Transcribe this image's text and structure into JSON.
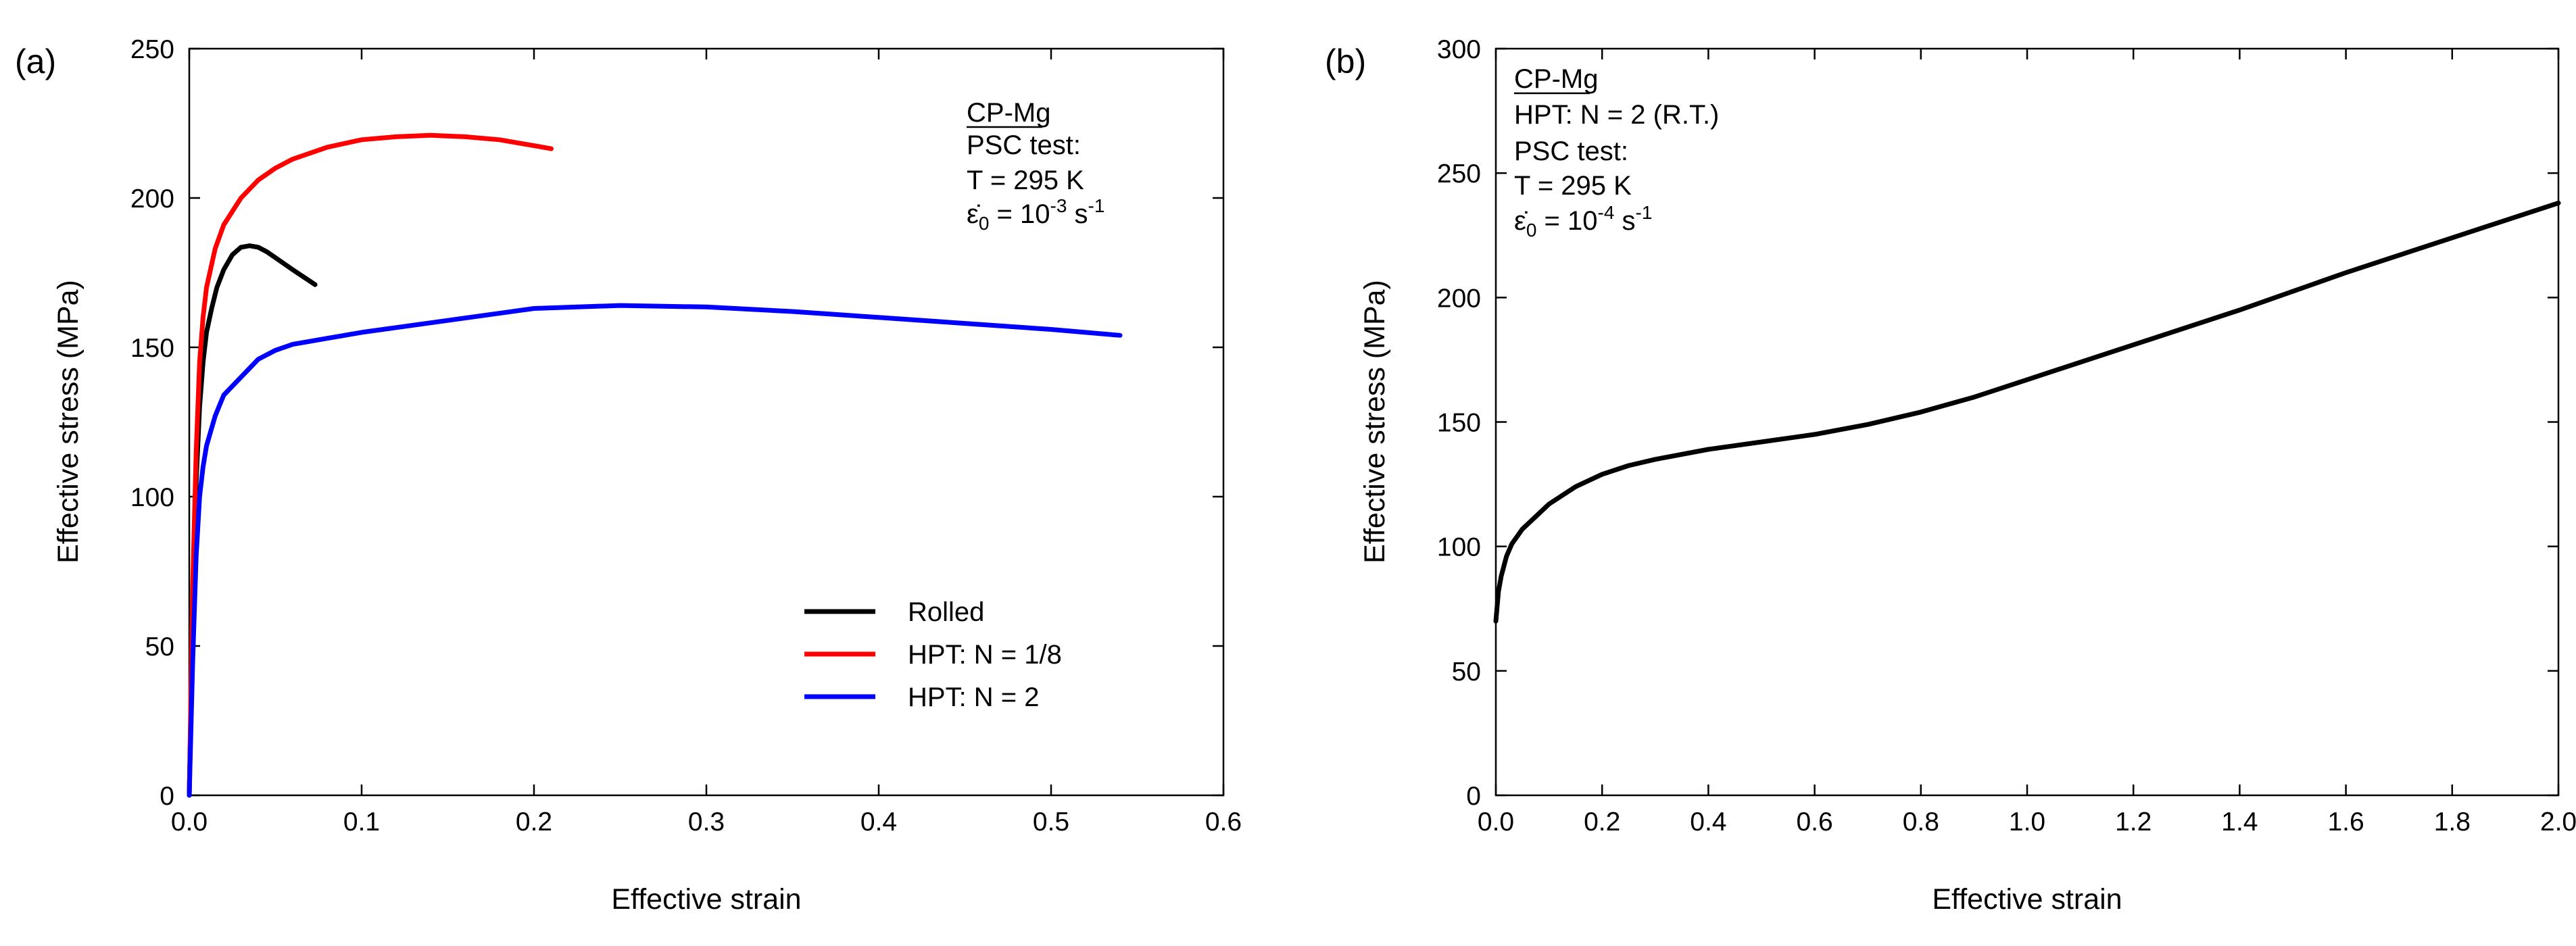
{
  "chart_data": [
    {
      "panel": "(a)",
      "type": "line",
      "xlabel": "Effective strain",
      "ylabel": "Effective stress (MPa)",
      "xlim": [
        0,
        0.6
      ],
      "ylim": [
        0,
        250
      ],
      "xticks": [
        0.0,
        0.1,
        0.2,
        0.3,
        0.4,
        0.5,
        0.6
      ],
      "xtick_labels": [
        "0.0",
        "0.1",
        "0.2",
        "0.3",
        "0.4",
        "0.5",
        "0.6"
      ],
      "yticks": [
        0,
        50,
        100,
        150,
        200,
        250
      ],
      "ytick_labels": [
        "0",
        "50",
        "100",
        "150",
        "200",
        "250"
      ],
      "annotation": {
        "material": "CP-Mg",
        "test": "PSC test:",
        "temperature": "T = 295 K",
        "rate_prefix": "ε̇",
        "rate_sub": "0",
        "rate_eq": " = 10",
        "rate_exp": "-3",
        "rate_unit": " s",
        "rate_unit_exp": "-1"
      },
      "series": [
        {
          "name": "Rolled",
          "color": "#000000",
          "x": [
            0,
            0.002,
            0.004,
            0.006,
            0.008,
            0.01,
            0.013,
            0.016,
            0.02,
            0.025,
            0.03,
            0.035,
            0.04,
            0.045,
            0.05,
            0.06,
            0.073
          ],
          "y": [
            0,
            60,
            105,
            130,
            145,
            155,
            163,
            170,
            176,
            181,
            183.5,
            184,
            183.5,
            182,
            180,
            176,
            171
          ]
        },
        {
          "name": "HPT: N = 1/8",
          "color": "#ff0000",
          "x": [
            0,
            0.002,
            0.004,
            0.006,
            0.008,
            0.01,
            0.015,
            0.02,
            0.03,
            0.04,
            0.05,
            0.06,
            0.08,
            0.1,
            0.12,
            0.14,
            0.16,
            0.18,
            0.2,
            0.21
          ],
          "y": [
            0,
            70,
            115,
            145,
            160,
            170,
            183,
            191,
            200,
            206,
            210,
            213,
            217,
            219.5,
            220.5,
            221,
            220.5,
            219.5,
            217.5,
            216.5
          ]
        },
        {
          "name": "HPT: N = 2",
          "color": "#0000ff",
          "x": [
            0,
            0.002,
            0.004,
            0.006,
            0.008,
            0.01,
            0.015,
            0.02,
            0.03,
            0.04,
            0.05,
            0.06,
            0.08,
            0.1,
            0.15,
            0.2,
            0.25,
            0.3,
            0.35,
            0.4,
            0.45,
            0.5,
            0.54
          ],
          "y": [
            0,
            45,
            80,
            100,
            110,
            117,
            127,
            134,
            140,
            146,
            149,
            151,
            153,
            155,
            159,
            163,
            164,
            163.5,
            162,
            160,
            158,
            156,
            154
          ]
        }
      ],
      "legend": {
        "position": "bottom-right",
        "entries": [
          "Rolled",
          "HPT: N = 1/8",
          "HPT: N = 2"
        ]
      }
    },
    {
      "panel": "(b)",
      "type": "line",
      "xlabel": "Effective strain",
      "ylabel": "Effective stress (MPa)",
      "xlim": [
        0,
        2.0
      ],
      "ylim": [
        0,
        300
      ],
      "xticks": [
        0.0,
        0.2,
        0.4,
        0.6,
        0.8,
        1.0,
        1.2,
        1.4,
        1.6,
        1.8,
        2.0
      ],
      "xtick_labels": [
        "0.0",
        "0.2",
        "0.4",
        "0.6",
        "0.8",
        "1.0",
        "1.2",
        "1.4",
        "1.6",
        "1.8",
        "2.0"
      ],
      "yticks": [
        0,
        50,
        100,
        150,
        200,
        250,
        300
      ],
      "ytick_labels": [
        "0",
        "50",
        "100",
        "150",
        "200",
        "250",
        "300"
      ],
      "annotation": {
        "material": "CP-Mg",
        "hpt": "HPT: N = 2 (R.T.)",
        "test": "PSC test:",
        "temperature": "T = 295 K",
        "rate_prefix": "ε̇",
        "rate_sub": "0",
        "rate_eq": " = 10",
        "rate_exp": "-4",
        "rate_unit": " s",
        "rate_unit_exp": "-1"
      },
      "series": [
        {
          "name": "CP-Mg HPT N = 2",
          "color": "#000000",
          "x": [
            0,
            0.005,
            0.01,
            0.02,
            0.03,
            0.05,
            0.08,
            0.1,
            0.15,
            0.2,
            0.25,
            0.3,
            0.4,
            0.5,
            0.6,
            0.7,
            0.8,
            0.9,
            1.0,
            1.2,
            1.4,
            1.6,
            1.8,
            2.0
          ],
          "y": [
            70,
            82,
            88,
            96,
            101,
            107,
            113,
            117,
            124,
            129,
            132.5,
            135,
            139,
            142,
            145,
            149,
            154,
            160,
            167,
            181,
            195,
            210,
            224,
            238
          ]
        }
      ]
    }
  ]
}
